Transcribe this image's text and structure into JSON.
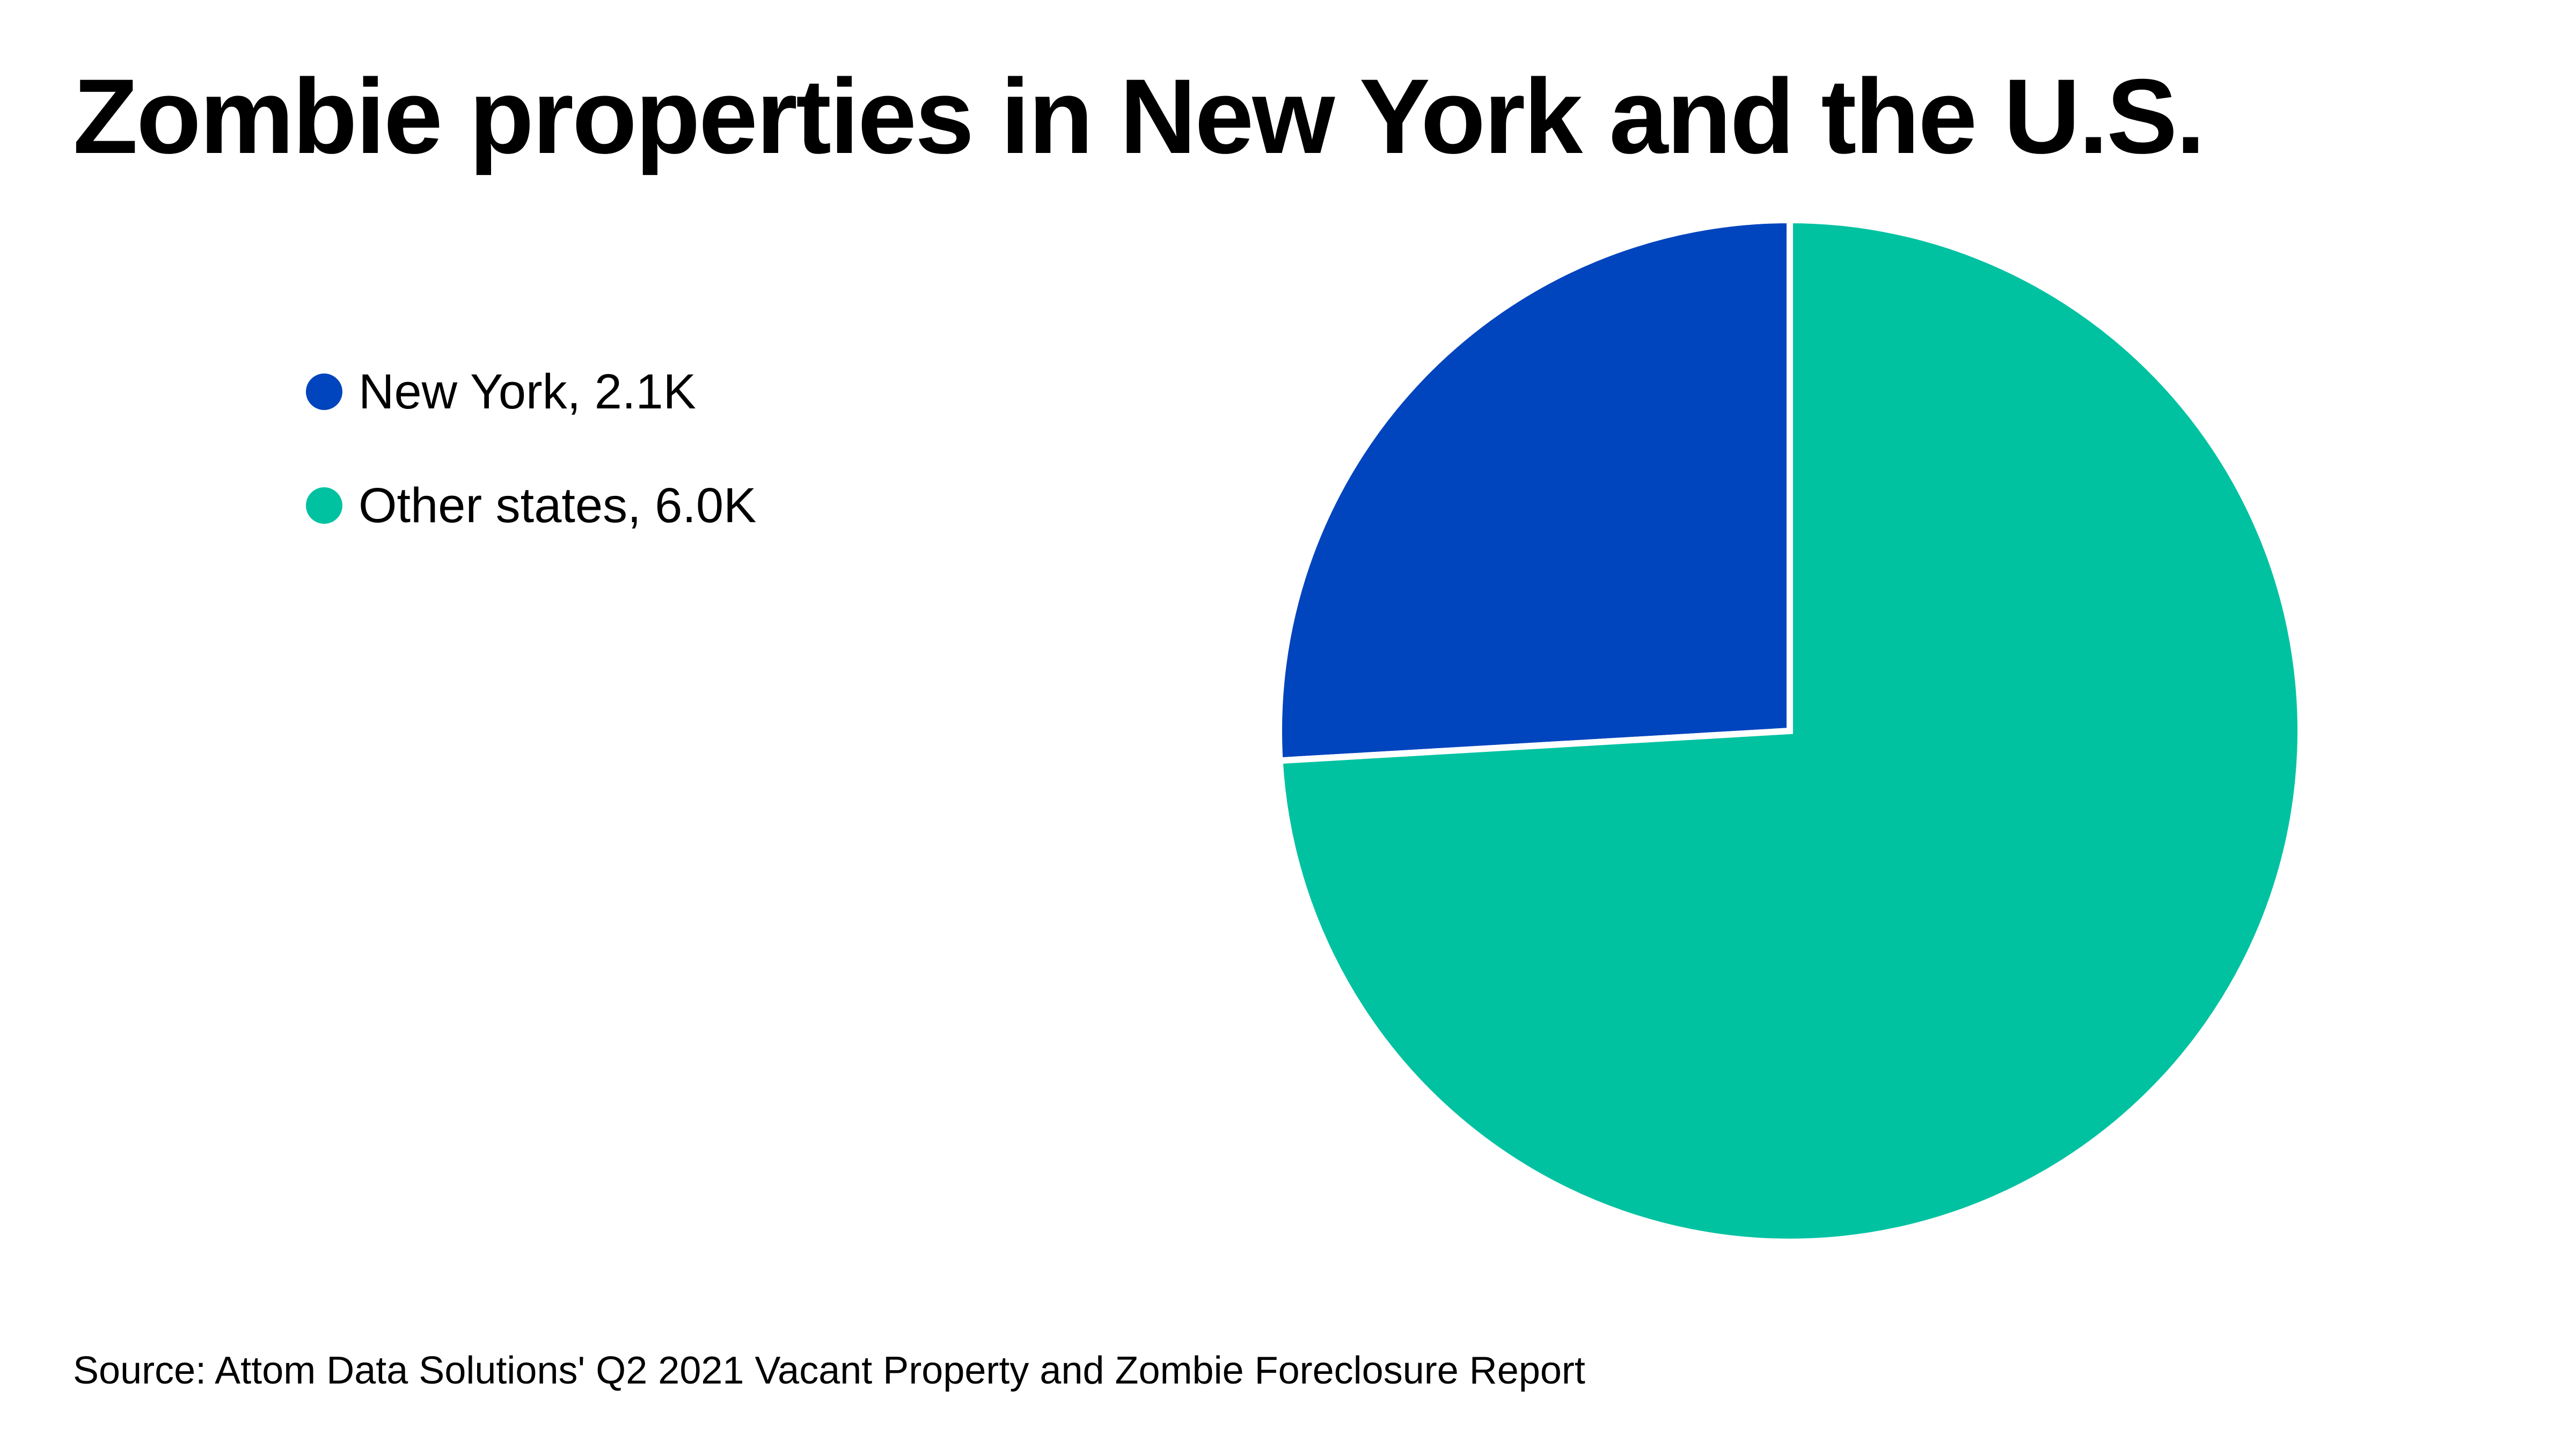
{
  "chart_data": {
    "type": "pie",
    "title": "Zombie properties in New York and the U.S.",
    "slices": [
      {
        "label": "New York",
        "value": 2.1,
        "display": "New York, 2.1K",
        "color": "#0044be"
      },
      {
        "label": "Other states",
        "value": 6.0,
        "display": "Other states, 6.0K",
        "color": "#00c2a1"
      }
    ],
    "unit": "K",
    "legend_position": "left",
    "source": "Source: Attom Data Solutions' Q2 2021 Vacant Property and Zombie Foreclosure Report"
  },
  "colors": {
    "background": "#ffffff",
    "slice_border": "#ffffff",
    "text": "#000000"
  }
}
